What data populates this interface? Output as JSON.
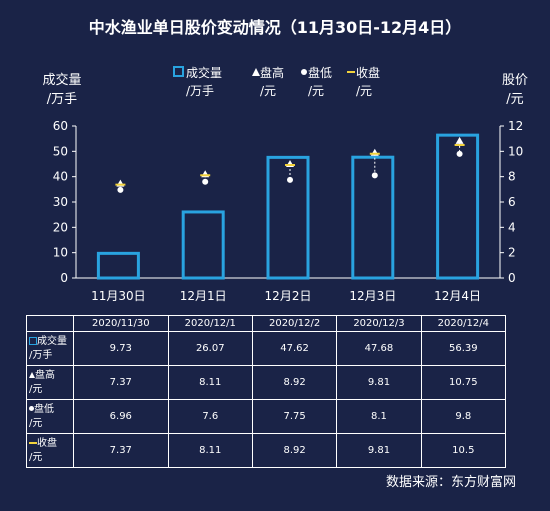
{
  "title": "中水渔业单日股价变动情况（11月30日-12月4日）",
  "source": "数据来源：东方财富网",
  "colors": {
    "background": "#1a2347",
    "bar": "#29a3e0",
    "high": "#ffffff",
    "low": "#ffffff",
    "close": "#f2d23c",
    "axis": "#ffffff"
  },
  "chart_data": {
    "type": "bar+scatter",
    "categories": [
      "11月30日",
      "12月1日",
      "12月2日",
      "12月3日",
      "12月4日"
    ],
    "left_axis": {
      "label_line1": "成交量",
      "label_line2": "/万手",
      "ylim": [
        0,
        60
      ],
      "ticks": [
        0,
        10,
        20,
        30,
        40,
        50,
        60
      ]
    },
    "right_axis": {
      "label_line1": "股价",
      "label_line2": "/元",
      "ylim": [
        0,
        12
      ],
      "ticks": [
        0,
        2,
        4,
        6,
        8,
        10,
        12
      ]
    },
    "legend": [
      {
        "label1": "成交量",
        "label2": "/万手",
        "marker": "box"
      },
      {
        "label1": "盘高",
        "label2": "/元",
        "marker": "triangle"
      },
      {
        "label1": "盘低",
        "label2": "/元",
        "marker": "dot"
      },
      {
        "label1": "收盘",
        "label2": "/元",
        "marker": "dash"
      }
    ],
    "legend_position": "top",
    "series": [
      {
        "name": "成交量/万手",
        "type": "bar",
        "axis": "left",
        "values": [
          9.73,
          26.07,
          47.62,
          47.68,
          56.39
        ]
      },
      {
        "name": "盘高/元",
        "type": "scatter",
        "axis": "right",
        "values": [
          7.37,
          8.11,
          8.92,
          9.81,
          10.75
        ]
      },
      {
        "name": "盘低/元",
        "type": "scatter",
        "axis": "right",
        "values": [
          6.96,
          7.6,
          7.75,
          8.1,
          9.8
        ]
      },
      {
        "name": "收盘/元",
        "type": "scatter",
        "axis": "right",
        "values": [
          7.37,
          8.11,
          8.92,
          9.81,
          10.5
        ]
      }
    ]
  },
  "table": {
    "headers": [
      "2020/11/30",
      "2020/12/1",
      "2020/12/2",
      "2020/12/3",
      "2020/12/4"
    ],
    "rows": [
      {
        "label1": "成交量",
        "label2": "/万手",
        "marker": "box",
        "values": [
          "9.73",
          "26.07",
          "47.62",
          "47.68",
          "56.39"
        ]
      },
      {
        "label1": "盘高",
        "label2": "/元",
        "marker": "triangle",
        "values": [
          "7.37",
          "8.11",
          "8.92",
          "9.81",
          "10.75"
        ]
      },
      {
        "label1": "盘低",
        "label2": "/元",
        "marker": "dot",
        "values": [
          "6.96",
          "7.6",
          "7.75",
          "8.1",
          "9.8"
        ]
      },
      {
        "label1": "收盘",
        "label2": "/元",
        "marker": "dash",
        "values": [
          "7.37",
          "8.11",
          "8.92",
          "9.81",
          "10.5"
        ]
      }
    ]
  }
}
